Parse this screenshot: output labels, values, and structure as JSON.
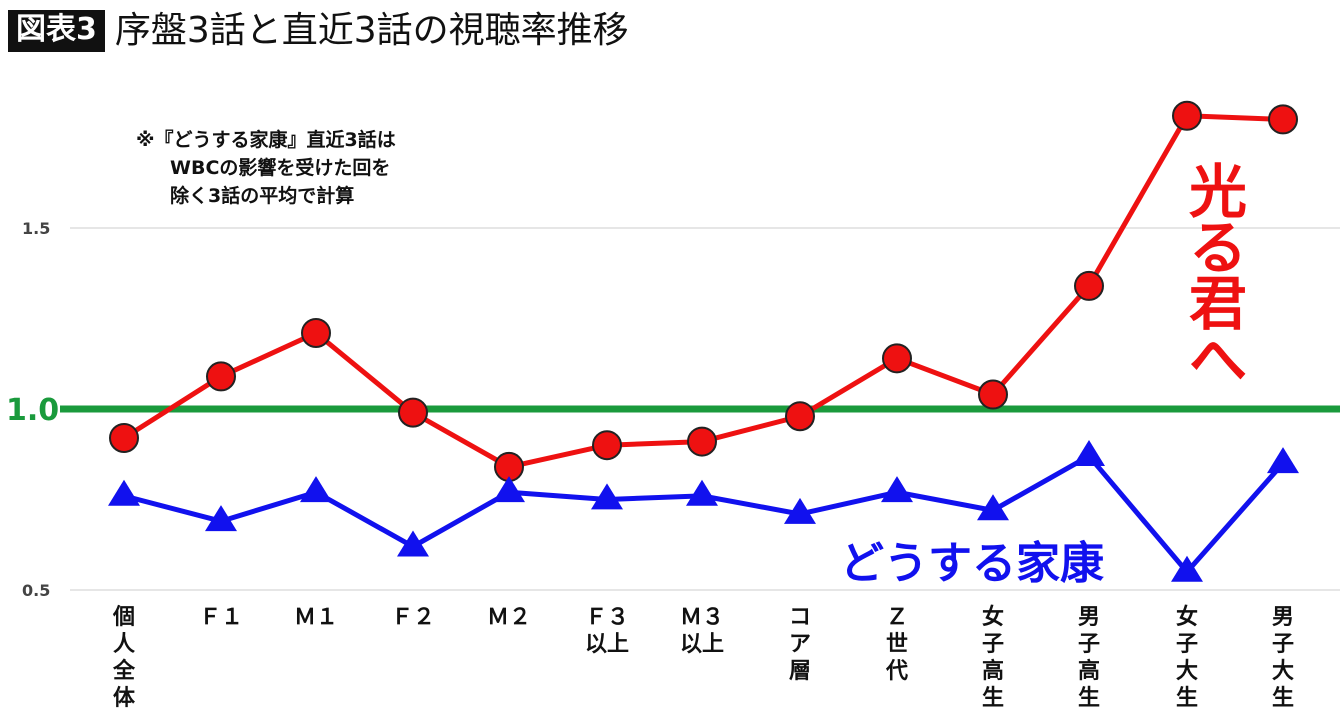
{
  "header": {
    "badge": "図表3",
    "title": "序盤3話と直近3話の視聴率推移"
  },
  "note": {
    "lines": [
      "※『どうする家康』直近3話は",
      "WBCの影響を受けた回を",
      "除く3話の平均で計算"
    ]
  },
  "colors": {
    "hikaru": "#ee1111",
    "ieyasu": "#1111ee",
    "reference": "#1a9a3c",
    "grid": "#cccccc"
  },
  "chart_data": {
    "type": "line",
    "categories": [
      "個人全体",
      "F1",
      "M1",
      "F2",
      "M2",
      "F3以上",
      "M3以上",
      "コア層",
      "Z世代",
      "女子高生",
      "男子高生",
      "女子大生",
      "男子大生"
    ],
    "category_label_lines": [
      [
        "個",
        "人",
        "全",
        "体"
      ],
      [
        "Ｆ１"
      ],
      [
        "Ｍ１"
      ],
      [
        "Ｆ２"
      ],
      [
        "Ｍ２"
      ],
      [
        "Ｆ３",
        "以上"
      ],
      [
        "Ｍ３",
        "以上"
      ],
      [
        "コ",
        "ア",
        "層"
      ],
      [
        "Ｚ",
        "世",
        "代"
      ],
      [
        "女",
        "子",
        "高",
        "生"
      ],
      [
        "男",
        "子",
        "高",
        "生"
      ],
      [
        "女",
        "子",
        "大",
        "生"
      ],
      [
        "男",
        "子",
        "大",
        "生"
      ]
    ],
    "series": [
      {
        "name": "光る君へ",
        "marker": "circle",
        "color": "#ee1111",
        "values": [
          0.92,
          1.09,
          1.21,
          0.99,
          0.84,
          0.9,
          0.91,
          0.98,
          1.14,
          1.04,
          1.34,
          1.81,
          1.8
        ]
      },
      {
        "name": "どうする家康",
        "marker": "triangle",
        "color": "#1111ee",
        "values": [
          0.76,
          0.69,
          0.77,
          0.62,
          0.77,
          0.75,
          0.76,
          0.71,
          0.77,
          0.72,
          0.87,
          0.55,
          0.85
        ]
      }
    ],
    "reference_line": {
      "value": 1.0,
      "label": "1.0"
    },
    "y_ticks": [
      {
        "value": 1.5,
        "label": "1.5"
      },
      {
        "value": 0.5,
        "label": "0.5"
      }
    ],
    "ylim": [
      0.5,
      1.85
    ],
    "grid": true,
    "legend": "inline-annotations"
  }
}
